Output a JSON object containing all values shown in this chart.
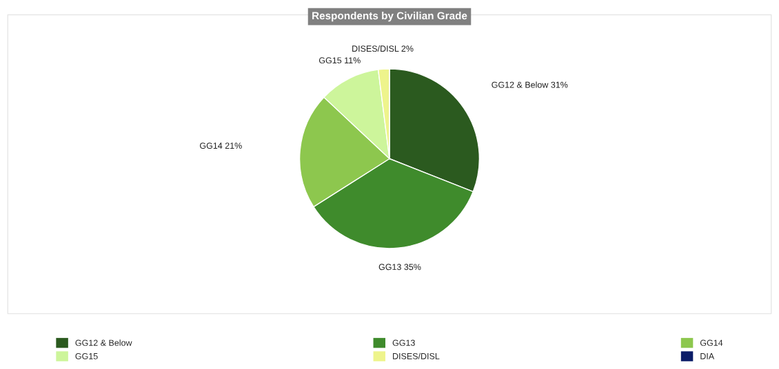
{
  "chart_data": {
    "type": "pie",
    "title": "Respondents by Civilian Grade",
    "categories": [
      "GG12 & Below",
      "GG13",
      "GG14",
      "GG15",
      "DISES/DISL",
      "DIA"
    ],
    "values": [
      31,
      35,
      21,
      11,
      2,
      0
    ],
    "colors": [
      "#2b5a1f",
      "#3f8b2c",
      "#8dc74e",
      "#cdf59b",
      "#eef48c",
      "#0b1c68"
    ],
    "value_labels": [
      "GG12 & Below 31%",
      "GG13 35%",
      "GG14 21%",
      "GG15 11%",
      "DISES/DISL 2%",
      null
    ],
    "legend": "bottom"
  }
}
